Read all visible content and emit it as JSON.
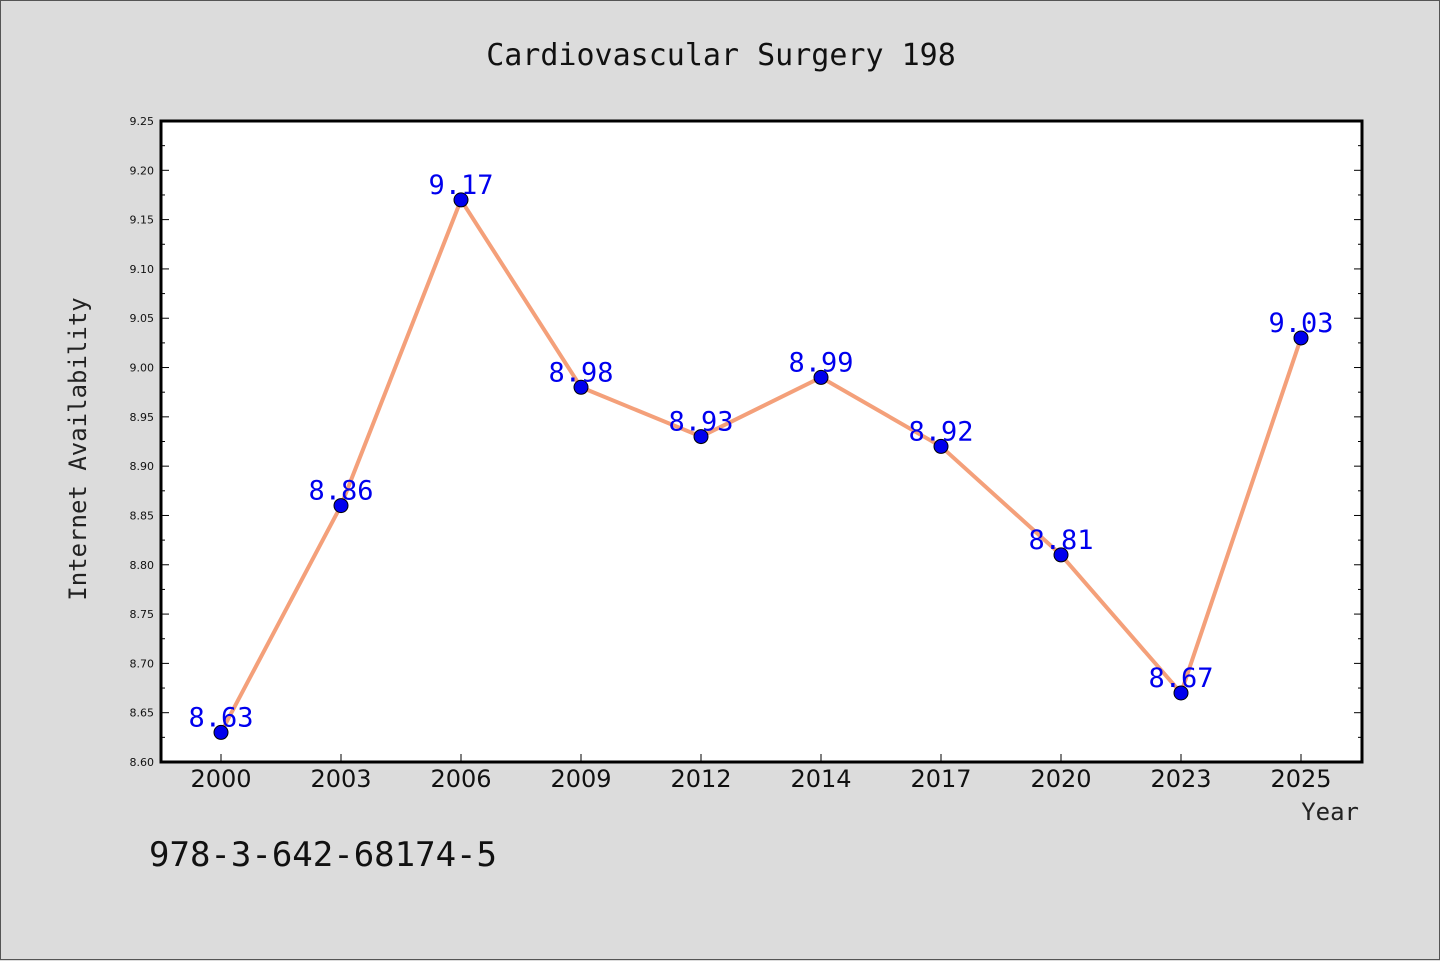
{
  "chart_data": {
    "type": "line",
    "title": "Cardiovascular Surgery 198",
    "xlabel": "Year",
    "ylabel": "Internet Availability",
    "categories": [
      "2000",
      "2003",
      "2006",
      "2009",
      "2012",
      "2014",
      "2017",
      "2020",
      "2023",
      "2025"
    ],
    "series": [
      {
        "values": [
          8.63,
          8.86,
          9.17,
          8.98,
          8.93,
          8.99,
          8.92,
          8.81,
          8.67,
          9.03
        ]
      }
    ],
    "data_labels": [
      "8.63",
      "8.86",
      "9.17",
      "8.98",
      "8.93",
      "8.99",
      "8.92",
      "8.81",
      "8.67",
      "9.03"
    ],
    "ylim": [
      8.6,
      9.25
    ],
    "yticks": [
      "8.60",
      "8.65",
      "8.70",
      "8.75",
      "8.80",
      "8.85",
      "8.90",
      "8.95",
      "9.00",
      "9.05",
      "9.10",
      "9.15",
      "9.20",
      "9.25"
    ],
    "grid": false,
    "legend": "none",
    "colors": {
      "line": "#f4a07a",
      "marker": "#0000ee",
      "data_label": "#0000ee",
      "background": "#dcdcdc",
      "plot_background": "#ffffff"
    }
  },
  "footer": {
    "isbn": "978-3-642-68174-5"
  }
}
